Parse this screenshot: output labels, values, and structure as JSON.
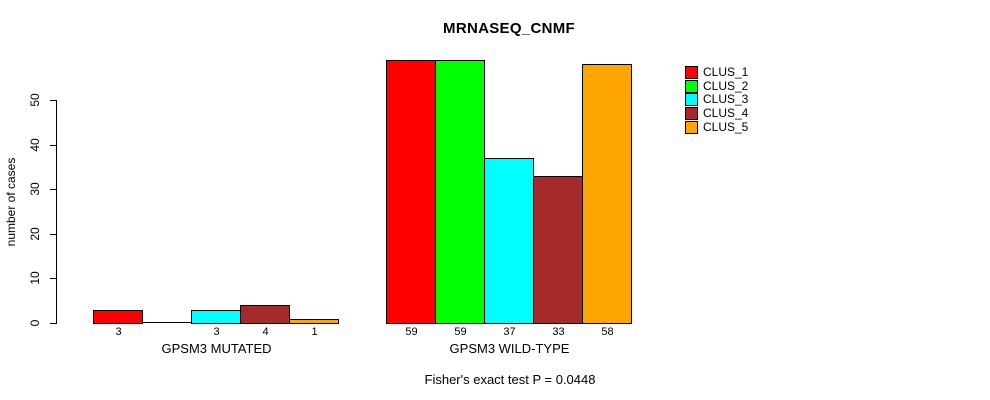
{
  "chart_data": {
    "type": "bar",
    "title": "MRNASEQ_CNMF",
    "ylabel": "number of cases",
    "xlabel": "",
    "ylim": [
      0,
      59
    ],
    "yticks": [
      0,
      10,
      20,
      30,
      40,
      50
    ],
    "grid": false,
    "legend_position": "right",
    "series": [
      "CLUS_1",
      "CLUS_2",
      "CLUS_3",
      "CLUS_4",
      "CLUS_5"
    ],
    "series_colors": [
      "#FF0000",
      "#00FF00",
      "#00FFFF",
      "#A52A2A",
      "#FFA500"
    ],
    "groups": [
      {
        "label": "GPSM3 MUTATED",
        "values": [
          3,
          0,
          3,
          4,
          1
        ],
        "bar_labels": [
          "3",
          "",
          "3",
          "4",
          "1"
        ]
      },
      {
        "label": "GPSM3 WILD-TYPE",
        "values": [
          59,
          59,
          37,
          33,
          58
        ],
        "bar_labels": [
          "59",
          "59",
          "37",
          "33",
          "58"
        ]
      }
    ],
    "annotation": "Fisher's exact test P = 0.0448"
  },
  "legend": {
    "items": [
      {
        "label": "CLUS_1",
        "color": "#FF0000"
      },
      {
        "label": "CLUS_2",
        "color": "#00FF00"
      },
      {
        "label": "CLUS_3",
        "color": "#00FFFF"
      },
      {
        "label": "CLUS_4",
        "color": "#A52A2A"
      },
      {
        "label": "CLUS_5",
        "color": "#FFA500"
      }
    ]
  }
}
